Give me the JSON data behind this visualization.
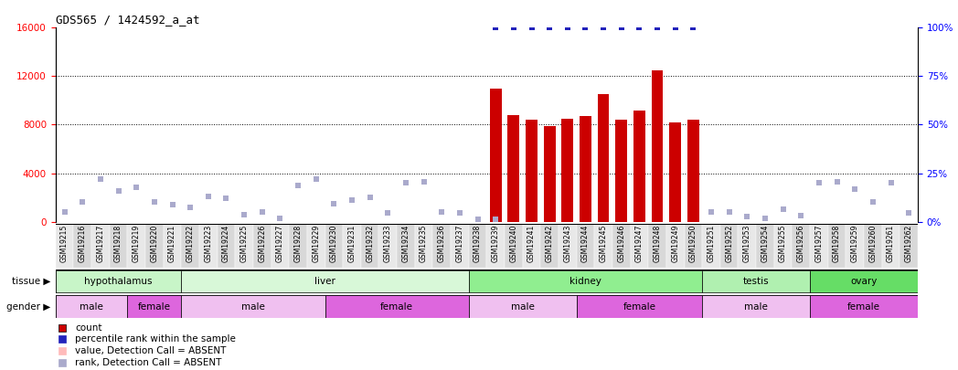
{
  "title": "GDS565 / 1424592_a_at",
  "samples": [
    "GSM19215",
    "GSM19216",
    "GSM19217",
    "GSM19218",
    "GSM19219",
    "GSM19220",
    "GSM19221",
    "GSM19222",
    "GSM19223",
    "GSM19224",
    "GSM19225",
    "GSM19226",
    "GSM19227",
    "GSM19228",
    "GSM19229",
    "GSM19230",
    "GSM19231",
    "GSM19232",
    "GSM19233",
    "GSM19234",
    "GSM19235",
    "GSM19236",
    "GSM19237",
    "GSM19238",
    "GSM19239",
    "GSM19240",
    "GSM19241",
    "GSM19242",
    "GSM19243",
    "GSM19244",
    "GSM19245",
    "GSM19246",
    "GSM19247",
    "GSM19248",
    "GSM19249",
    "GSM19250",
    "GSM19251",
    "GSM19252",
    "GSM19253",
    "GSM19254",
    "GSM19255",
    "GSM19256",
    "GSM19257",
    "GSM19258",
    "GSM19259",
    "GSM19260",
    "GSM19261",
    "GSM19262"
  ],
  "count_values": [
    0,
    0,
    0,
    0,
    0,
    0,
    0,
    0,
    0,
    0,
    0,
    0,
    0,
    0,
    0,
    0,
    0,
    0,
    0,
    0,
    0,
    0,
    0,
    0,
    11000,
    8800,
    8400,
    7900,
    8500,
    8700,
    10500,
    8400,
    9200,
    12500,
    8200,
    8400,
    0,
    0,
    0,
    0,
    0,
    0,
    0,
    0,
    0,
    0,
    0,
    0
  ],
  "percentile_rank_values": [
    null,
    null,
    null,
    null,
    null,
    null,
    null,
    null,
    null,
    null,
    null,
    null,
    null,
    null,
    null,
    null,
    null,
    null,
    null,
    null,
    null,
    null,
    null,
    null,
    16000,
    16000,
    16000,
    16000,
    16000,
    16000,
    16000,
    16000,
    16000,
    16000,
    16000,
    16000,
    null,
    null,
    null,
    null,
    null,
    null,
    null,
    null,
    null,
    null,
    null,
    null
  ],
  "absent_value": [
    800,
    1600,
    3500,
    2500,
    2800,
    1600,
    1400,
    1200,
    2100,
    1900,
    600,
    800,
    300,
    3000,
    3500,
    1500,
    1800,
    2000,
    700,
    3200,
    3300,
    800,
    700,
    200,
    200,
    null,
    null,
    null,
    null,
    null,
    null,
    null,
    null,
    null,
    null,
    null,
    800,
    800,
    400,
    300,
    1000,
    500,
    3200,
    3300,
    2700,
    1600,
    3200,
    700
  ],
  "absent_rank": [
    800,
    1600,
    3500,
    2500,
    2800,
    1600,
    1400,
    1200,
    2100,
    1900,
    600,
    800,
    300,
    3000,
    3500,
    1500,
    1800,
    2000,
    700,
    3200,
    3300,
    800,
    700,
    200,
    200,
    null,
    null,
    null,
    null,
    null,
    null,
    null,
    null,
    null,
    null,
    null,
    800,
    800,
    400,
    300,
    1000,
    500,
    3200,
    3300,
    2700,
    1600,
    3200,
    700
  ],
  "tissues": [
    {
      "label": "hypothalamus",
      "start": 0,
      "end": 7,
      "color": "#c8f5c8"
    },
    {
      "label": "liver",
      "start": 7,
      "end": 23,
      "color": "#d8f8d8"
    },
    {
      "label": "kidney",
      "start": 23,
      "end": 36,
      "color": "#90ee90"
    },
    {
      "label": "testis",
      "start": 36,
      "end": 42,
      "color": "#b0f0b0"
    },
    {
      "label": "ovary",
      "start": 42,
      "end": 48,
      "color": "#66dd66"
    }
  ],
  "genders": [
    {
      "label": "male",
      "start": 0,
      "end": 4,
      "color": "#f0c0f0"
    },
    {
      "label": "female",
      "start": 4,
      "end": 7,
      "color": "#dd66dd"
    },
    {
      "label": "male",
      "start": 7,
      "end": 15,
      "color": "#f0c0f0"
    },
    {
      "label": "female",
      "start": 15,
      "end": 23,
      "color": "#dd66dd"
    },
    {
      "label": "male",
      "start": 23,
      "end": 29,
      "color": "#f0c0f0"
    },
    {
      "label": "female",
      "start": 29,
      "end": 36,
      "color": "#dd66dd"
    },
    {
      "label": "male",
      "start": 36,
      "end": 42,
      "color": "#f0c0f0"
    },
    {
      "label": "female",
      "start": 42,
      "end": 48,
      "color": "#dd66dd"
    }
  ],
  "ylim_left": [
    0,
    16000
  ],
  "ylim_right": [
    0,
    100
  ],
  "yticks_left": [
    0,
    4000,
    8000,
    12000,
    16000
  ],
  "yticks_right": [
    0,
    25,
    50,
    75,
    100
  ],
  "bar_color": "#cc0000",
  "percentile_color": "#2222bb",
  "absent_value_color": "#ffbbbb",
  "absent_rank_color": "#aaaacc",
  "bg_color": "#ffffff",
  "xtick_bg_even": "#e8e8e8",
  "xtick_bg_odd": "#d8d8d8"
}
